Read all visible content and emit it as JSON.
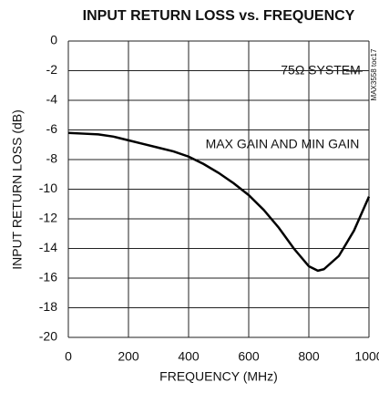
{
  "chart_data": {
    "type": "line",
    "title": "INPUT RETURN LOSS vs. FREQUENCY",
    "x_label": "FREQUENCY (MHz)",
    "y_label": "INPUT RETURN LOSS (dB)",
    "annotations": [
      "75Ω SYSTEM",
      "MAX GAIN AND MIN GAIN",
      "MAX3558 toc17"
    ],
    "x": [
      0,
      50,
      100,
      150,
      200,
      250,
      300,
      350,
      400,
      450,
      500,
      550,
      600,
      650,
      700,
      750,
      800,
      830,
      850,
      900,
      950,
      1000
    ],
    "values": [
      -6.2,
      -6.25,
      -6.3,
      -6.45,
      -6.7,
      -6.95,
      -7.2,
      -7.45,
      -7.8,
      -8.3,
      -8.9,
      -9.6,
      -10.4,
      -11.4,
      -12.6,
      -14.0,
      -15.2,
      -15.5,
      -15.4,
      -14.5,
      -12.8,
      -10.5
    ],
    "color": "#000000",
    "xlim": [
      0,
      1000
    ],
    "xticks": [
      0,
      200,
      400,
      600,
      800,
      1000
    ],
    "ylim": [
      -20,
      0
    ],
    "yticks": [
      0,
      -2,
      -4,
      -6,
      -8,
      -10,
      -12,
      -14,
      -16,
      -18,
      -20
    ],
    "grid": true
  }
}
